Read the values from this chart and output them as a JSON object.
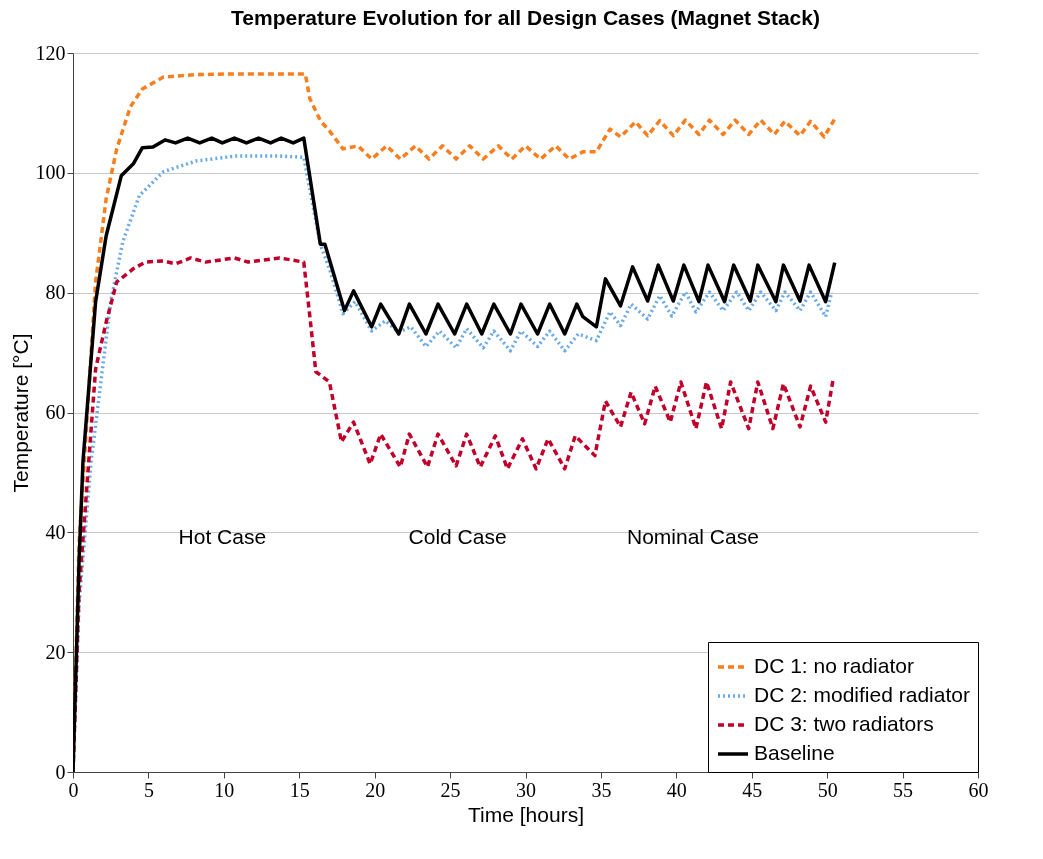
{
  "chart_data": {
    "type": "line",
    "title": "Temperature Evolution for all Design Cases (Magnet Stack)",
    "xlabel": "Time [hours]",
    "ylabel": "Temperature [°C]",
    "xlim": [
      0,
      60
    ],
    "xticks": [
      0,
      5,
      10,
      15,
      20,
      25,
      30,
      35,
      40,
      45,
      50,
      55,
      60
    ],
    "ylim": [
      0,
      120
    ],
    "yticks": [
      0,
      20,
      40,
      60,
      80,
      100,
      120
    ],
    "grid": "y",
    "legend": "bottom right",
    "marker": "none",
    "annotations": [
      "Hot Case",
      "Cold Case",
      "Nominal Case"
    ],
    "series": [
      {
        "name": "DC 1: no radiator",
        "color": "#f77f1f",
        "line_style": "dashed",
        "x": [
          0,
          0.4,
          1.5,
          2.2,
          2.9,
          3.8,
          4.6,
          6.0,
          8.2,
          10.5,
          13,
          15.4,
          15.7,
          16.4,
          17.0,
          17.9,
          18.9,
          19.8,
          20.8,
          21.7,
          22.7,
          23.6,
          24.5,
          25.4,
          26.3,
          27.2,
          28.2,
          29.1,
          30.0,
          31.0,
          32.0,
          32.9,
          33.8,
          34.7,
          35.6,
          36.3,
          37.3,
          38.1,
          38.9,
          39.8,
          40.6,
          41.5,
          42.2,
          43.1,
          43.9,
          44.8,
          45.6,
          46.5,
          47.2,
          48.2,
          48.9,
          49.8,
          50.5
        ],
        "values": [
          0,
          38,
          81.8,
          95.7,
          104,
          111,
          114,
          116,
          116.4,
          116.5,
          116.5,
          116.5,
          112.4,
          108.7,
          107,
          104,
          104.5,
          102.3,
          104.5,
          102.3,
          104.5,
          102.3,
          104.5,
          102.3,
          104.5,
          102.3,
          104.5,
          102.3,
          104.5,
          102.3,
          104.5,
          102.3,
          103.5,
          103.5,
          107.3,
          106,
          108.5,
          106.2,
          108.7,
          106.2,
          108.8,
          106.4,
          108.8,
          106.4,
          108.8,
          106.4,
          108.8,
          106.4,
          108.6,
          106.2,
          108.6,
          106,
          109
        ]
      },
      {
        "name": "DC 2: modified radiator",
        "color": "#6aaae4",
        "line_style": "dotted",
        "x": [
          0,
          0.4,
          1.2,
          2.5,
          3.3,
          4.4,
          6.0,
          8.2,
          10.8,
          13.7,
          15.3,
          16.4,
          17.0,
          17.9,
          18.7,
          19.8,
          20.7,
          21.6,
          22.4,
          23.4,
          24.3,
          25.4,
          26.1,
          27.2,
          27.9,
          29.0,
          29.7,
          30.8,
          31.6,
          32.6,
          33.5,
          34.7,
          35.6,
          36.3,
          37.0,
          38.1,
          38.9,
          39.7,
          40.6,
          41.3,
          42.2,
          43.1,
          44.0,
          44.8,
          45.6,
          46.6,
          47.2,
          48.2,
          48.9,
          49.9,
          50.3
        ],
        "values": [
          0,
          28,
          51.8,
          78.5,
          88.5,
          96.2,
          100.2,
          102,
          102.8,
          102.8,
          102.6,
          88,
          84,
          76.5,
          78.5,
          73.6,
          75.3,
          73.4,
          74.3,
          71,
          73.6,
          70.8,
          74,
          70.8,
          73.6,
          70.3,
          73.6,
          71,
          73.6,
          70.3,
          73.1,
          72,
          76.8,
          74.5,
          78.1,
          75.6,
          79.5,
          76.1,
          80.1,
          76.8,
          80.1,
          77,
          80.1,
          77,
          80.1,
          77,
          80.1,
          77,
          80.1,
          76,
          80.1
        ]
      },
      {
        "name": "DC 3: two radiators",
        "color": "#c0002a",
        "line_style": "dashed",
        "x": [
          0,
          0.4,
          1.5,
          2.2,
          2.9,
          4.0,
          4.8,
          6.0,
          6.8,
          7.8,
          8.8,
          10.7,
          11.6,
          13.7,
          15.3,
          15.7,
          16.1,
          17.0,
          17.8,
          18.6,
          19.7,
          20.4,
          21.7,
          22.3,
          23.5,
          24.2,
          25.4,
          26.1,
          27.0,
          28.0,
          28.8,
          29.8,
          30.7,
          31.5,
          32.6,
          33.3,
          34.6,
          35.3,
          36.3,
          37.0,
          37.9,
          38.6,
          39.6,
          40.3,
          41.3,
          42.0,
          43.0,
          43.6,
          44.8,
          45.4,
          46.4,
          47.1,
          48.2,
          48.9,
          49.9,
          50.4
        ],
        "values": [
          0,
          30,
          67.3,
          75.1,
          81.8,
          84,
          85.1,
          85.3,
          84.8,
          85.8,
          85.1,
          85.8,
          85.1,
          85.8,
          85.1,
          76.1,
          66.8,
          65.1,
          55.1,
          58.4,
          51.4,
          56.4,
          50.9,
          56.4,
          50.9,
          56.4,
          51.1,
          56.4,
          50.9,
          56.1,
          50.6,
          55.6,
          50.6,
          55.6,
          50.6,
          56.1,
          52.8,
          61.9,
          57.6,
          63.4,
          58.1,
          64.4,
          58.4,
          65.1,
          57.3,
          65.1,
          57.3,
          65.1,
          57.3,
          65.1,
          57.3,
          64.8,
          57.6,
          64.4,
          58.4,
          65.6
        ]
      },
      {
        "name": "Baseline",
        "color": "#000000",
        "line_style": "solid",
        "x": [
          0,
          0.4,
          0.66,
          1.5,
          2.2,
          3.2,
          4.0,
          4.6,
          5.3,
          6.1,
          6.8,
          7.6,
          8.4,
          9.2,
          9.9,
          10.7,
          11.5,
          12.3,
          13.1,
          13.8,
          14.6,
          15.3,
          16.4,
          16.7,
          18.0,
          18.6,
          19.8,
          20.4,
          21.6,
          22.3,
          23.4,
          24.2,
          25.3,
          26.1,
          27.1,
          27.9,
          29.0,
          29.7,
          30.8,
          31.6,
          32.6,
          33.4,
          33.8,
          34.7,
          35.3,
          36.3,
          37.1,
          38.1,
          38.8,
          39.8,
          40.5,
          41.5,
          42.1,
          43.2,
          43.8,
          44.9,
          45.4,
          46.6,
          47.1,
          48.2,
          48.8,
          49.9,
          50.5
        ],
        "values": [
          0,
          35,
          51.8,
          78.5,
          89.5,
          99.5,
          101.5,
          104.2,
          104.3,
          105.5,
          105,
          105.8,
          105,
          105.8,
          105,
          105.8,
          105,
          105.8,
          105,
          105.8,
          105,
          105.8,
          88.1,
          88.1,
          77,
          80.3,
          74.3,
          78.1,
          73.1,
          78.1,
          73.1,
          78.1,
          73.1,
          78.1,
          73.1,
          78.1,
          73.1,
          78.1,
          73.1,
          78.1,
          73.1,
          78.1,
          76,
          74.3,
          82.3,
          77.8,
          84.3,
          78.6,
          84.6,
          78.6,
          84.6,
          78.5,
          84.6,
          78.5,
          84.6,
          78.6,
          84.6,
          78.5,
          84.6,
          78.6,
          84.6,
          78.5,
          85
        ]
      }
    ]
  }
}
